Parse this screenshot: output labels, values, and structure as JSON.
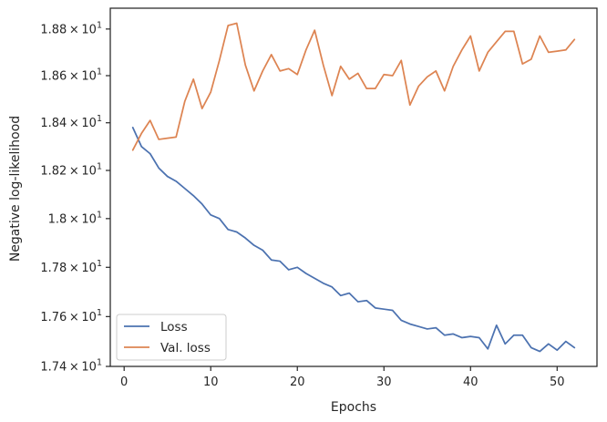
{
  "chart_data": {
    "type": "line",
    "title": "",
    "xlabel": "Epochs",
    "ylabel": "Negative log-likelihood",
    "x_ticks": [
      "0",
      "10",
      "20",
      "30",
      "40",
      "50"
    ],
    "y_ticks": [
      {
        "mantissa": "1.74",
        "base": "10",
        "exp": "1"
      },
      {
        "mantissa": "1.76",
        "base": "10",
        "exp": "1"
      },
      {
        "mantissa": "1.78",
        "base": "10",
        "exp": "1"
      },
      {
        "mantissa": "1.8",
        "base": "10",
        "exp": "1"
      },
      {
        "mantissa": "1.82",
        "base": "10",
        "exp": "1"
      },
      {
        "mantissa": "1.84",
        "base": "10",
        "exp": "1"
      },
      {
        "mantissa": "1.86",
        "base": "10",
        "exp": "1"
      },
      {
        "mantissa": "1.88",
        "base": "10",
        "exp": "1"
      }
    ],
    "xlim": [
      -1.6,
      54.6
    ],
    "ylim": [
      17.4,
      18.89
    ],
    "yscale": "log",
    "grid": false,
    "legend_position": "lower-left",
    "x": [
      1,
      2,
      3,
      4,
      5,
      6,
      7,
      8,
      9,
      10,
      11,
      12,
      13,
      14,
      15,
      16,
      17,
      18,
      19,
      20,
      21,
      22,
      23,
      24,
      25,
      26,
      27,
      28,
      29,
      30,
      31,
      32,
      33,
      34,
      35,
      36,
      37,
      38,
      39,
      40,
      41,
      42,
      43,
      44,
      45,
      46,
      47,
      48,
      49,
      50,
      51,
      52
    ],
    "series": [
      {
        "name": "Loss",
        "color": "#4c72b0",
        "values": [
          18.38,
          18.3,
          18.27,
          18.21,
          18.175,
          18.155,
          18.125,
          18.095,
          18.06,
          18.015,
          18.0,
          17.955,
          17.945,
          17.92,
          17.89,
          17.87,
          17.83,
          17.825,
          17.79,
          17.8,
          17.775,
          17.755,
          17.735,
          17.72,
          17.685,
          17.695,
          17.66,
          17.665,
          17.635,
          17.63,
          17.625,
          17.585,
          17.57,
          17.56,
          17.55,
          17.555,
          17.525,
          17.53,
          17.515,
          17.52,
          17.515,
          17.47,
          17.565,
          17.49,
          17.525,
          17.525,
          17.475,
          17.46,
          17.49,
          17.465,
          17.5,
          17.475
        ]
      },
      {
        "name": "Val. loss",
        "color": "#dd8452",
        "values": [
          18.285,
          18.355,
          18.41,
          18.33,
          18.335,
          18.34,
          18.49,
          18.585,
          18.46,
          18.53,
          18.665,
          18.815,
          18.825,
          18.645,
          18.535,
          18.62,
          18.69,
          18.62,
          18.63,
          18.605,
          18.71,
          18.795,
          18.645,
          18.515,
          18.64,
          18.585,
          18.61,
          18.545,
          18.545,
          18.605,
          18.6,
          18.665,
          18.475,
          18.555,
          18.595,
          18.62,
          18.535,
          18.64,
          18.71,
          18.77,
          18.62,
          18.7,
          18.745,
          18.79,
          18.79,
          18.65,
          18.67,
          18.77,
          18.7,
          18.705,
          18.71,
          18.755
        ]
      }
    ]
  }
}
